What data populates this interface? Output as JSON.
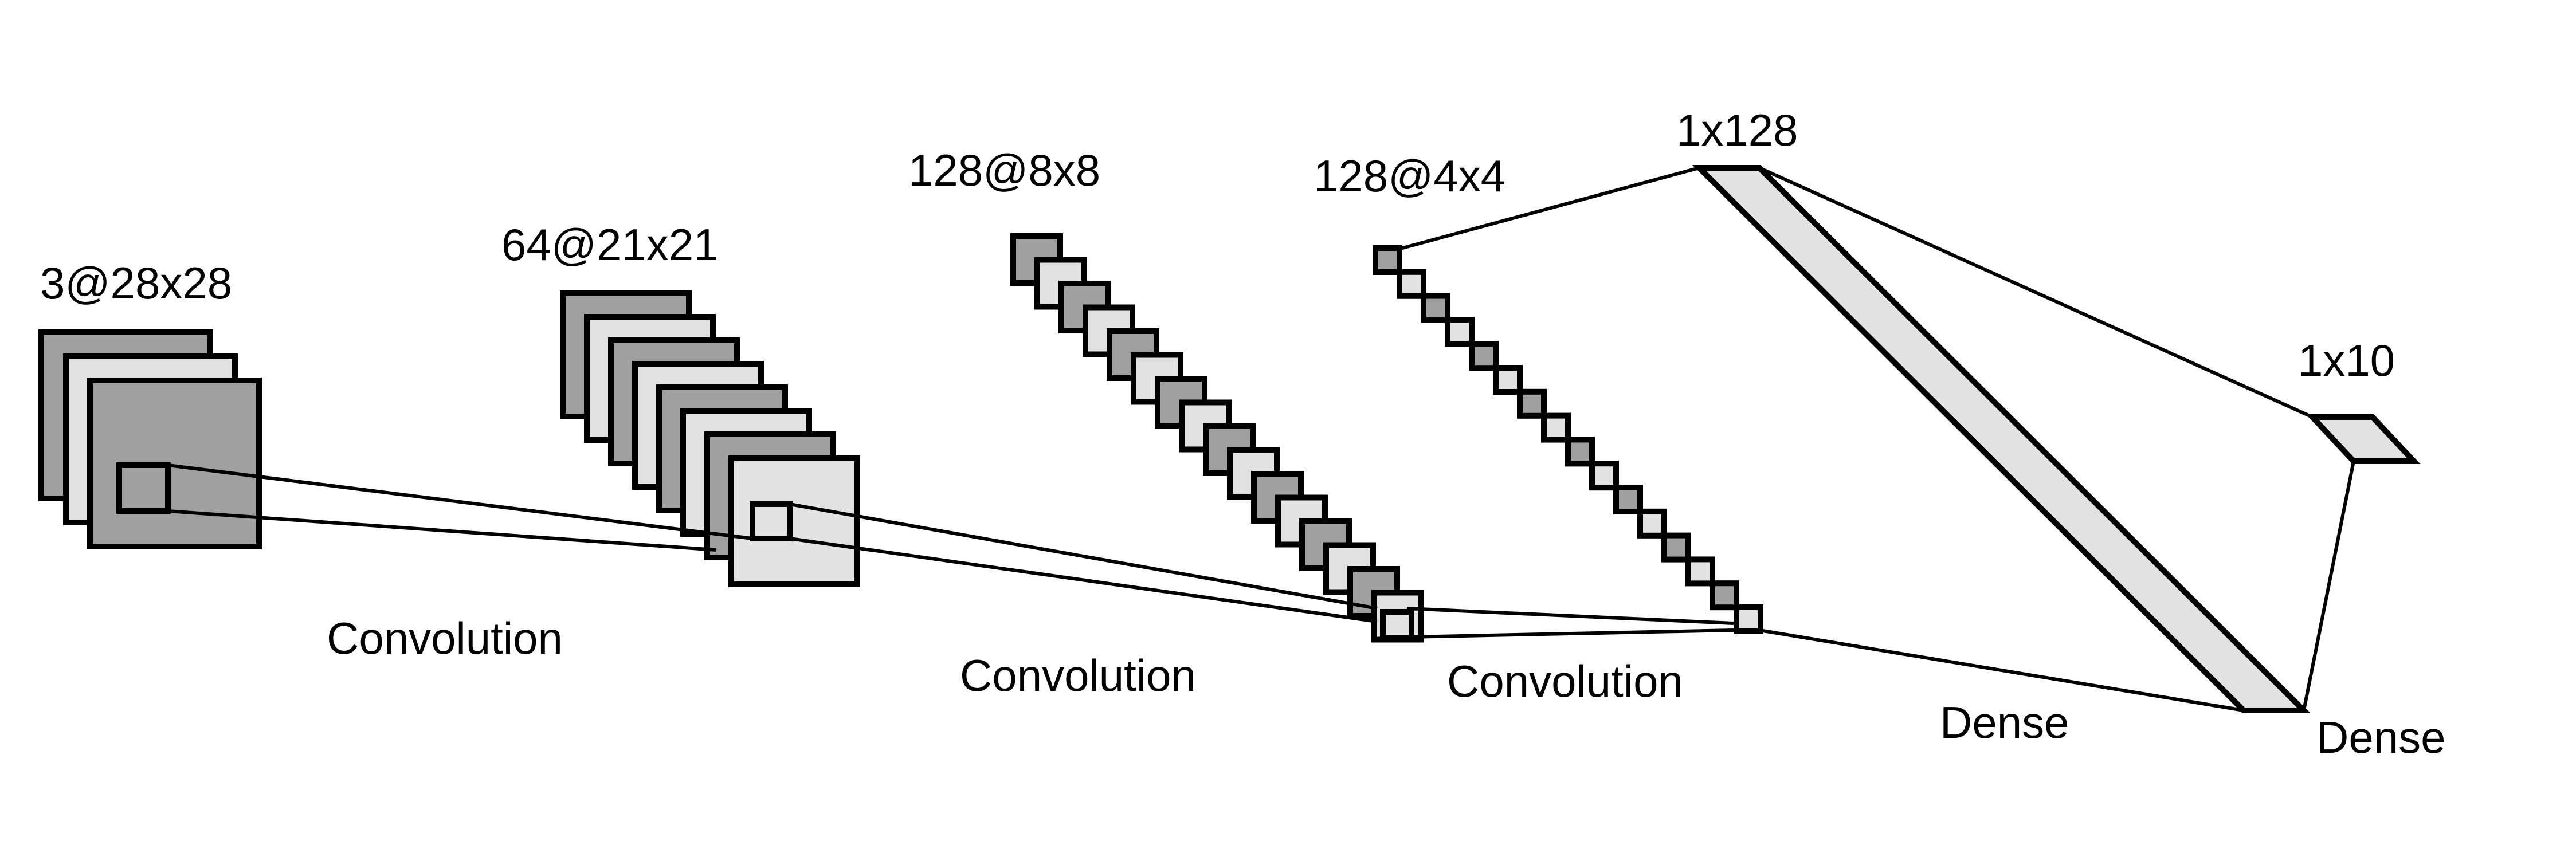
{
  "layers": [
    {
      "id": "input",
      "label": "3@28x28"
    },
    {
      "id": "conv1",
      "label": "64@21x21"
    },
    {
      "id": "conv2",
      "label": "128@8x8"
    },
    {
      "id": "conv3",
      "label": "128@4x4"
    },
    {
      "id": "dense1",
      "label": "1x128"
    },
    {
      "id": "output",
      "label": "1x10"
    }
  ],
  "operations": [
    {
      "id": "op1",
      "label": "Convolution"
    },
    {
      "id": "op2",
      "label": "Convolution"
    },
    {
      "id": "op3",
      "label": "Convolution"
    },
    {
      "id": "op4",
      "label": "Dense"
    },
    {
      "id": "op5",
      "label": "Dense"
    }
  ],
  "colors": {
    "dark_fill": "#a0a0a0",
    "light_fill": "#e2e2e2",
    "stroke": "#000000"
  }
}
